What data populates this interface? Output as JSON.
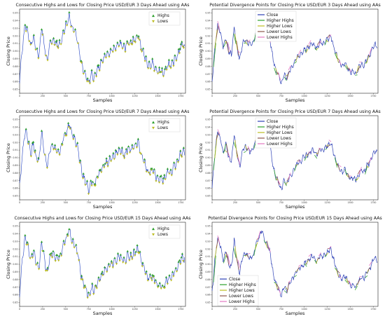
{
  "chart_data": [
    {
      "type": "scatter",
      "title": "Consecutive Highs and Lows for Closing Price  USD/EUR 3 Days Ahead using AAs",
      "xlabel": "Samples",
      "ylabel": "Closing Price",
      "x_ticks": [
        "0",
        "250",
        "500",
        "750",
        "1000",
        "1250",
        "1500",
        "1750"
      ],
      "y_ticks": [
        "0.95",
        "0.94",
        "0.93",
        "0.92",
        "0.91",
        "0.90",
        "0.89",
        "0.88",
        "0.87",
        "0.86",
        "0.85"
      ],
      "xlim": [
        0,
        1800
      ],
      "ylim": [
        0.845,
        0.955
      ],
      "legend_position": "top-right",
      "series": [
        {
          "name": "Highs",
          "marker": "triangle-up",
          "color": "#2ca02c"
        },
        {
          "name": "Lows",
          "marker": "triangle-down",
          "color": "#bcbd22"
        }
      ],
      "line_color": "#1f3fbf"
    },
    {
      "type": "line",
      "title": "Potential Divergence Points for Closing Price  USD/EUR 3 Days Ahead using AAs",
      "xlabel": "Samples",
      "ylabel": "Closing Price",
      "x_ticks": [
        "0",
        "250",
        "500",
        "750",
        "1000",
        "1250",
        "1500",
        "1750"
      ],
      "y_ticks": [
        "0.95",
        "0.94",
        "0.93",
        "0.92",
        "0.91",
        "0.90",
        "0.89",
        "0.88",
        "0.87",
        "0.86",
        "0.85"
      ],
      "xlim": [
        0,
        1800
      ],
      "ylim": [
        0.845,
        0.955
      ],
      "legend_position": "top-right",
      "series": [
        {
          "name": "Close",
          "color": "#2b3fb5"
        },
        {
          "name": "Higher Highs",
          "color": "#2ca02c"
        },
        {
          "name": "Higher Lows",
          "color": "#bcbd22"
        },
        {
          "name": "Lower Lows",
          "color": "#8c564b"
        },
        {
          "name": "Lower Highs",
          "color": "#e377c2"
        }
      ]
    },
    {
      "type": "scatter",
      "title": "Consecutive Highs and Lows for Closing Price  USD/EUR 7 Days Ahead using AAs",
      "xlabel": "Samples",
      "ylabel": "Closing Price",
      "x_ticks": [
        "0",
        "250",
        "500",
        "750",
        "1000",
        "1250",
        "1500",
        "1750"
      ],
      "y_ticks": [
        "0.95",
        "0.94",
        "0.93",
        "0.92",
        "0.91",
        "0.90",
        "0.89",
        "0.88",
        "0.87",
        "0.86",
        "0.85"
      ],
      "xlim": [
        0,
        1800
      ],
      "ylim": [
        0.845,
        0.955
      ],
      "legend_position": "top-right",
      "series": [
        {
          "name": "Highs",
          "marker": "triangle-up",
          "color": "#2ca02c"
        },
        {
          "name": "Lows",
          "marker": "triangle-down",
          "color": "#bcbd22"
        }
      ],
      "line_color": "#1f3fbf"
    },
    {
      "type": "line",
      "title": "Potential Divergence Points for Closing Price  USD/EUR 7 Days Ahead using AAs",
      "xlabel": "Samples",
      "ylabel": "Closing Price",
      "x_ticks": [
        "0",
        "250",
        "500",
        "750",
        "1000",
        "1250",
        "1500",
        "1750"
      ],
      "y_ticks": [
        "0.95",
        "0.94",
        "0.93",
        "0.92",
        "0.91",
        "0.90",
        "0.89",
        "0.88",
        "0.87",
        "0.86",
        "0.85"
      ],
      "xlim": [
        0,
        1800
      ],
      "ylim": [
        0.845,
        0.955
      ],
      "legend_position": "top-right",
      "series": [
        {
          "name": "Close",
          "color": "#2b3fb5"
        },
        {
          "name": "Higher Highs",
          "color": "#2ca02c"
        },
        {
          "name": "Higher Lows",
          "color": "#bcbd22"
        },
        {
          "name": "Lower Lows",
          "color": "#8c564b"
        },
        {
          "name": "Lower Highs",
          "color": "#e377c2"
        }
      ]
    },
    {
      "type": "scatter",
      "title": "Consecutive Highs and Lows for Closing Price  USD/EUR 15 Days Ahead using AAs",
      "xlabel": "Samples",
      "ylabel": "Closing Price",
      "x_ticks": [
        "0",
        "250",
        "500",
        "750",
        "1000",
        "1250",
        "1500",
        "1750"
      ],
      "y_ticks": [
        "0.95",
        "0.94",
        "0.93",
        "0.92",
        "0.91",
        "0.90",
        "0.89",
        "0.88",
        "0.87",
        "0.86",
        "0.85"
      ],
      "xlim": [
        0,
        1800
      ],
      "ylim": [
        0.845,
        0.955
      ],
      "legend_position": "top-right",
      "series": [
        {
          "name": "Highs",
          "marker": "triangle-up",
          "color": "#2ca02c"
        },
        {
          "name": "Lows",
          "marker": "triangle-down",
          "color": "#bcbd22"
        }
      ],
      "line_color": "#1f3fbf"
    },
    {
      "type": "line",
      "title": "Potential Divergence Points for Closing Price  USD/EUR 15 Days Ahead using AAs",
      "xlabel": "Samples",
      "ylabel": "Closing Price",
      "x_ticks": [
        "0",
        "250",
        "500",
        "750",
        "1000",
        "1250",
        "1500",
        "1750"
      ],
      "y_ticks": [
        "0.95",
        "0.94",
        "0.93",
        "0.92",
        "0.91",
        "0.90",
        "0.89",
        "0.88",
        "0.87",
        "0.86",
        "0.85"
      ],
      "xlim": [
        0,
        1800
      ],
      "ylim": [
        0.845,
        0.955
      ],
      "legend_position": "lower-left",
      "series": [
        {
          "name": "Close",
          "color": "#2b3fb5"
        },
        {
          "name": "Higher Highs",
          "color": "#2ca02c"
        },
        {
          "name": "Higher Lows",
          "color": "#bcbd22"
        },
        {
          "name": "Lower Lows",
          "color": "#8c564b"
        },
        {
          "name": "Lower Highs",
          "color": "#e377c2"
        }
      ]
    }
  ],
  "price_path": {
    "x": [
      0,
      30,
      60,
      90,
      120,
      150,
      180,
      210,
      240,
      270,
      300,
      330,
      360,
      390,
      420,
      450,
      480,
      510,
      540,
      570,
      600,
      630,
      660,
      690,
      720,
      750,
      780,
      810,
      840,
      870,
      900,
      930,
      960,
      990,
      1020,
      1050,
      1080,
      1110,
      1140,
      1170,
      1200,
      1230,
      1260,
      1290,
      1320,
      1350,
      1380,
      1410,
      1440,
      1470,
      1500,
      1530,
      1560,
      1590,
      1620,
      1650,
      1680,
      1710,
      1740,
      1770,
      1790
    ],
    "y": [
      0.862,
      0.905,
      0.935,
      0.925,
      0.905,
      0.918,
      0.9,
      0.895,
      0.932,
      0.905,
      0.888,
      0.91,
      0.915,
      0.91,
      0.908,
      0.912,
      0.928,
      0.935,
      0.945,
      0.93,
      0.925,
      0.915,
      0.89,
      0.875,
      0.868,
      0.858,
      0.87,
      0.865,
      0.875,
      0.88,
      0.888,
      0.893,
      0.895,
      0.9,
      0.903,
      0.905,
      0.91,
      0.908,
      0.903,
      0.912,
      0.91,
      0.913,
      0.917,
      0.92,
      0.905,
      0.895,
      0.885,
      0.88,
      0.885,
      0.878,
      0.872,
      0.874,
      0.87,
      0.878,
      0.883,
      0.881,
      0.89,
      0.893,
      0.904,
      0.909,
      0.906
    ]
  }
}
